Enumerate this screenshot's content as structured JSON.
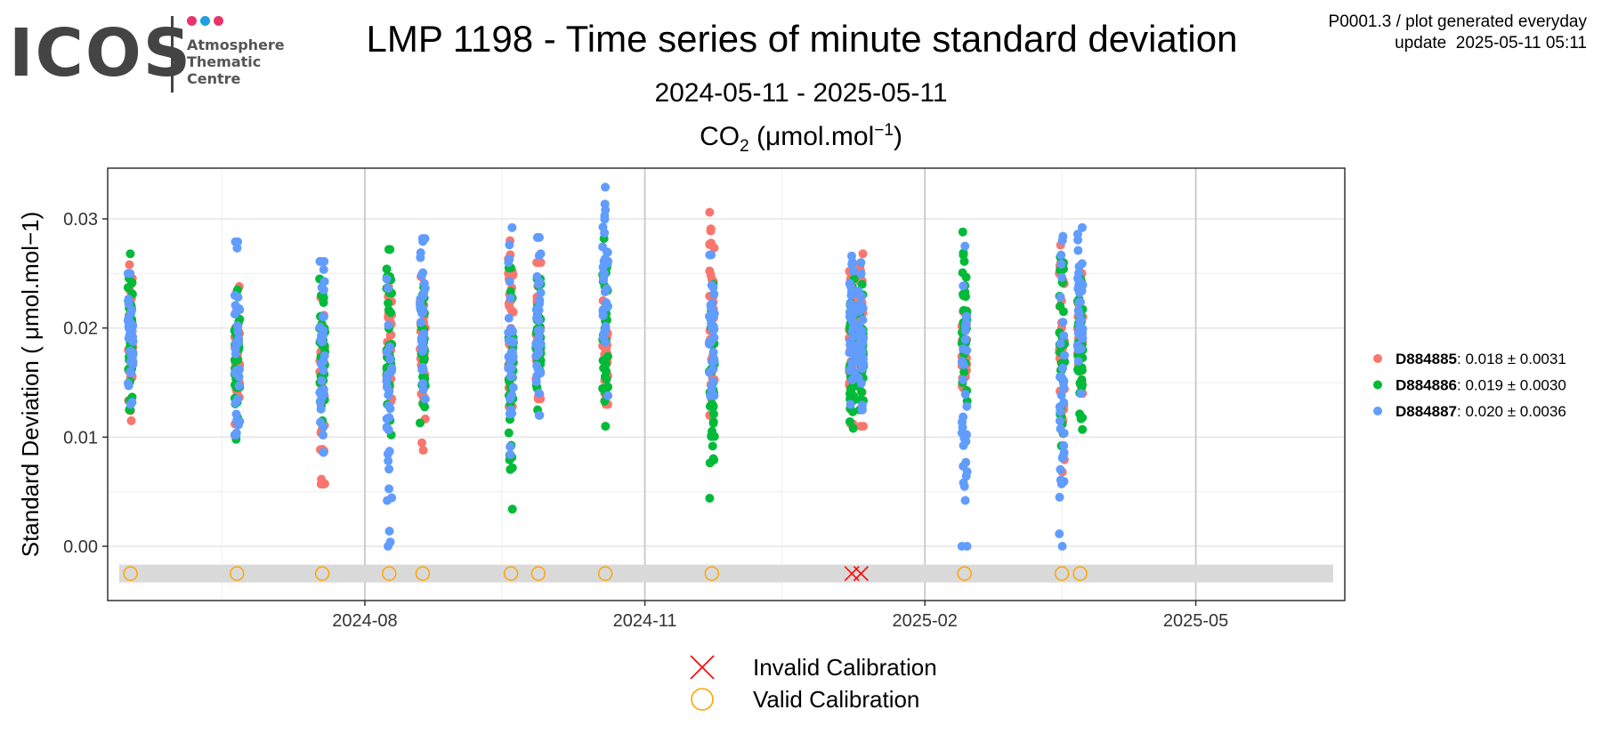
{
  "header": {
    "logo_text": "ICOS",
    "logo_subtitle": [
      "Atmosphere",
      "Thematic",
      "Centre"
    ],
    "logo_dot_colors": [
      "#e8336d",
      "#1e9fe0",
      "#e8336d"
    ],
    "title": "LMP 1198 - Time series of minute standard deviation",
    "subtitle": "2024-05-11 - 2025-05-11",
    "meta_line1": "P0001.3 / plot generated everyday",
    "meta_line2": "update  2025-05-11 05:11"
  },
  "panel": {
    "gas": "CO",
    "gas_sub": "2",
    "unit_open": " (μmol.mol",
    "unit_sup": "−1",
    "unit_close": ")"
  },
  "chart_data": {
    "type": "scatter",
    "title": "CO2 (μmol.mol−1)",
    "ylabel": "Standard Deviation ( μmol.mol−1)",
    "xlabel": "",
    "x_range": [
      "2024-05-11",
      "2025-05-11"
    ],
    "ylim": [
      -0.005,
      0.0345
    ],
    "x_ticks": [
      "2024-08",
      "2024-11",
      "2025-02",
      "2025-05"
    ],
    "y_ticks": [
      0.0,
      0.01,
      0.02,
      0.03
    ],
    "y_tick_labels": [
      "0.00",
      "0.01",
      "0.02",
      "0.03"
    ],
    "grid": true,
    "legend_placement": "right",
    "series": [
      {
        "name": "D884885",
        "stat": ": 0.018 ± 0.0031",
        "color": "#f8766d",
        "points": [
          {
            "date": "2024-05-16",
            "min": 0.0115,
            "max": 0.0258
          },
          {
            "date": "2024-06-20",
            "min": 0.0112,
            "max": 0.0238
          },
          {
            "date": "2024-07-18",
            "min": 0.0057,
            "max": 0.0228
          },
          {
            "date": "2024-08-09",
            "min": 0.013,
            "max": 0.0238
          },
          {
            "date": "2024-08-20",
            "min": 0.0088,
            "max": 0.0247
          },
          {
            "date": "2024-09-18",
            "min": 0.0128,
            "max": 0.028
          },
          {
            "date": "2024-09-27",
            "min": 0.0135,
            "max": 0.026
          },
          {
            "date": "2024-10-19",
            "min": 0.013,
            "max": 0.0225
          },
          {
            "date": "2024-11-23",
            "min": 0.012,
            "max": 0.0306
          },
          {
            "date": "2025-01-08",
            "min": 0.0112,
            "max": 0.0252
          },
          {
            "date": "2025-01-11",
            "min": 0.011,
            "max": 0.0268
          },
          {
            "date": "2025-02-14",
            "min": 0.0145,
            "max": 0.0215
          },
          {
            "date": "2025-03-18",
            "min": 0.0068,
            "max": 0.0276
          },
          {
            "date": "2025-03-24",
            "min": 0.014,
            "max": 0.025
          }
        ]
      },
      {
        "name": "D884886",
        "stat": ": 0.019 ± 0.0030",
        "color": "#00ba38",
        "points": [
          {
            "date": "2024-05-16",
            "min": 0.0125,
            "max": 0.0268
          },
          {
            "date": "2024-06-20",
            "min": 0.0098,
            "max": 0.0235
          },
          {
            "date": "2024-07-18",
            "min": 0.0115,
            "max": 0.0245
          },
          {
            "date": "2024-08-09",
            "min": 0.0102,
            "max": 0.0272
          },
          {
            "date": "2024-08-20",
            "min": 0.0113,
            "max": 0.024
          },
          {
            "date": "2024-09-18",
            "min": 0.0034,
            "max": 0.0255
          },
          {
            "date": "2024-09-27",
            "min": 0.0125,
            "max": 0.0245
          },
          {
            "date": "2024-10-19",
            "min": 0.011,
            "max": 0.0282
          },
          {
            "date": "2024-11-23",
            "min": 0.0044,
            "max": 0.024
          },
          {
            "date": "2025-01-08",
            "min": 0.0108,
            "max": 0.0245
          },
          {
            "date": "2025-01-11",
            "min": 0.0125,
            "max": 0.024
          },
          {
            "date": "2025-02-14",
            "min": 0.0133,
            "max": 0.0288
          },
          {
            "date": "2025-03-18",
            "min": 0.0092,
            "max": 0.0265
          },
          {
            "date": "2025-03-24",
            "min": 0.0107,
            "max": 0.0245
          }
        ]
      },
      {
        "name": "D884887",
        "stat": ": 0.020 ± 0.0036",
        "color": "#619cff",
        "points": [
          {
            "date": "2024-05-16",
            "min": 0.013,
            "max": 0.025
          },
          {
            "date": "2024-06-20",
            "min": 0.0102,
            "max": 0.0279
          },
          {
            "date": "2024-07-18",
            "min": 0.0086,
            "max": 0.0261
          },
          {
            "date": "2024-08-09",
            "min": 0.0,
            "max": 0.0245
          },
          {
            "date": "2024-08-20",
            "min": 0.0135,
            "max": 0.0282
          },
          {
            "date": "2024-09-18",
            "min": 0.0084,
            "max": 0.0292
          },
          {
            "date": "2024-09-27",
            "min": 0.012,
            "max": 0.0283
          },
          {
            "date": "2024-10-19",
            "min": 0.0138,
            "max": 0.0329
          },
          {
            "date": "2024-11-23",
            "min": 0.0138,
            "max": 0.0267
          },
          {
            "date": "2025-01-08",
            "min": 0.013,
            "max": 0.0266
          },
          {
            "date": "2025-01-11",
            "min": 0.0125,
            "max": 0.026
          },
          {
            "date": "2025-02-14",
            "min": 0.0,
            "max": 0.0275
          },
          {
            "date": "2025-03-18",
            "min": 0.0,
            "max": 0.0284
          },
          {
            "date": "2025-03-24",
            "min": 0.014,
            "max": 0.0292
          }
        ]
      }
    ],
    "calibrations": {
      "y": -0.0025,
      "valid_color": "#ffa500",
      "invalid_color": "#ff0000",
      "valid": [
        "2024-05-16",
        "2024-06-20",
        "2024-07-18",
        "2024-08-09",
        "2024-08-20",
        "2024-09-18",
        "2024-09-27",
        "2024-10-19",
        "2024-11-23",
        "2025-02-14",
        "2025-03-18",
        "2025-03-24"
      ],
      "invalid": [
        "2025-01-08",
        "2025-01-11"
      ]
    },
    "legend_bottom": {
      "invalid_label": "Invalid Calibration",
      "valid_label": "Valid Calibration"
    }
  }
}
